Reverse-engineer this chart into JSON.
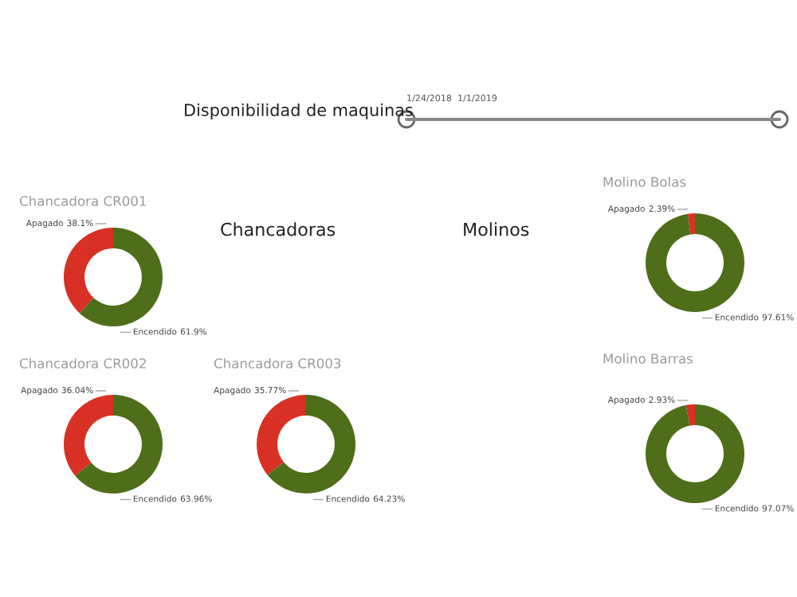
{
  "chart_data": [
    {
      "type": "other",
      "title": "Disponibilidad de maquinas",
      "annotations": [
        "1/24/2018",
        "1/1/2019",
        "Chancadoras",
        "Molinos"
      ]
    },
    {
      "type": "donut",
      "title": "Chancadora CR001",
      "categories": [
        "Apagado",
        "Encendido"
      ],
      "values": [
        38.1,
        61.9
      ],
      "value_labels": [
        "38.1%",
        "61.9%"
      ],
      "colors": [
        "#d93025",
        "#4e6e1a"
      ]
    },
    {
      "type": "donut",
      "title": "Molino Bolas",
      "categories": [
        "Apagado",
        "Encendido"
      ],
      "values": [
        2.39,
        97.61
      ],
      "value_labels": [
        "2.39%",
        "97.61%"
      ],
      "colors": [
        "#d93025",
        "#4e6e1a"
      ]
    },
    {
      "type": "donut",
      "title": "Chancadora CR002",
      "categories": [
        "Apagado",
        "Encendido"
      ],
      "values": [
        36.04,
        63.96
      ],
      "value_labels": [
        "36.04%",
        "63.96%"
      ],
      "colors": [
        "#d93025",
        "#4e6e1a"
      ]
    },
    {
      "type": "donut",
      "title": "Chancadora CR003",
      "categories": [
        "Apagado",
        "Encendido"
      ],
      "values": [
        35.77,
        64.23
      ],
      "value_labels": [
        "35.77%",
        "64.23%"
      ],
      "colors": [
        "#d93025",
        "#4e6e1a"
      ]
    },
    {
      "type": "donut",
      "title": "Molino Barras",
      "categories": [
        "Apagado",
        "Encendido"
      ],
      "values": [
        2.93,
        97.07
      ],
      "value_labels": [
        "2.93%",
        "97.07%"
      ],
      "colors": [
        "#d93025",
        "#4e6e1a"
      ]
    }
  ]
}
